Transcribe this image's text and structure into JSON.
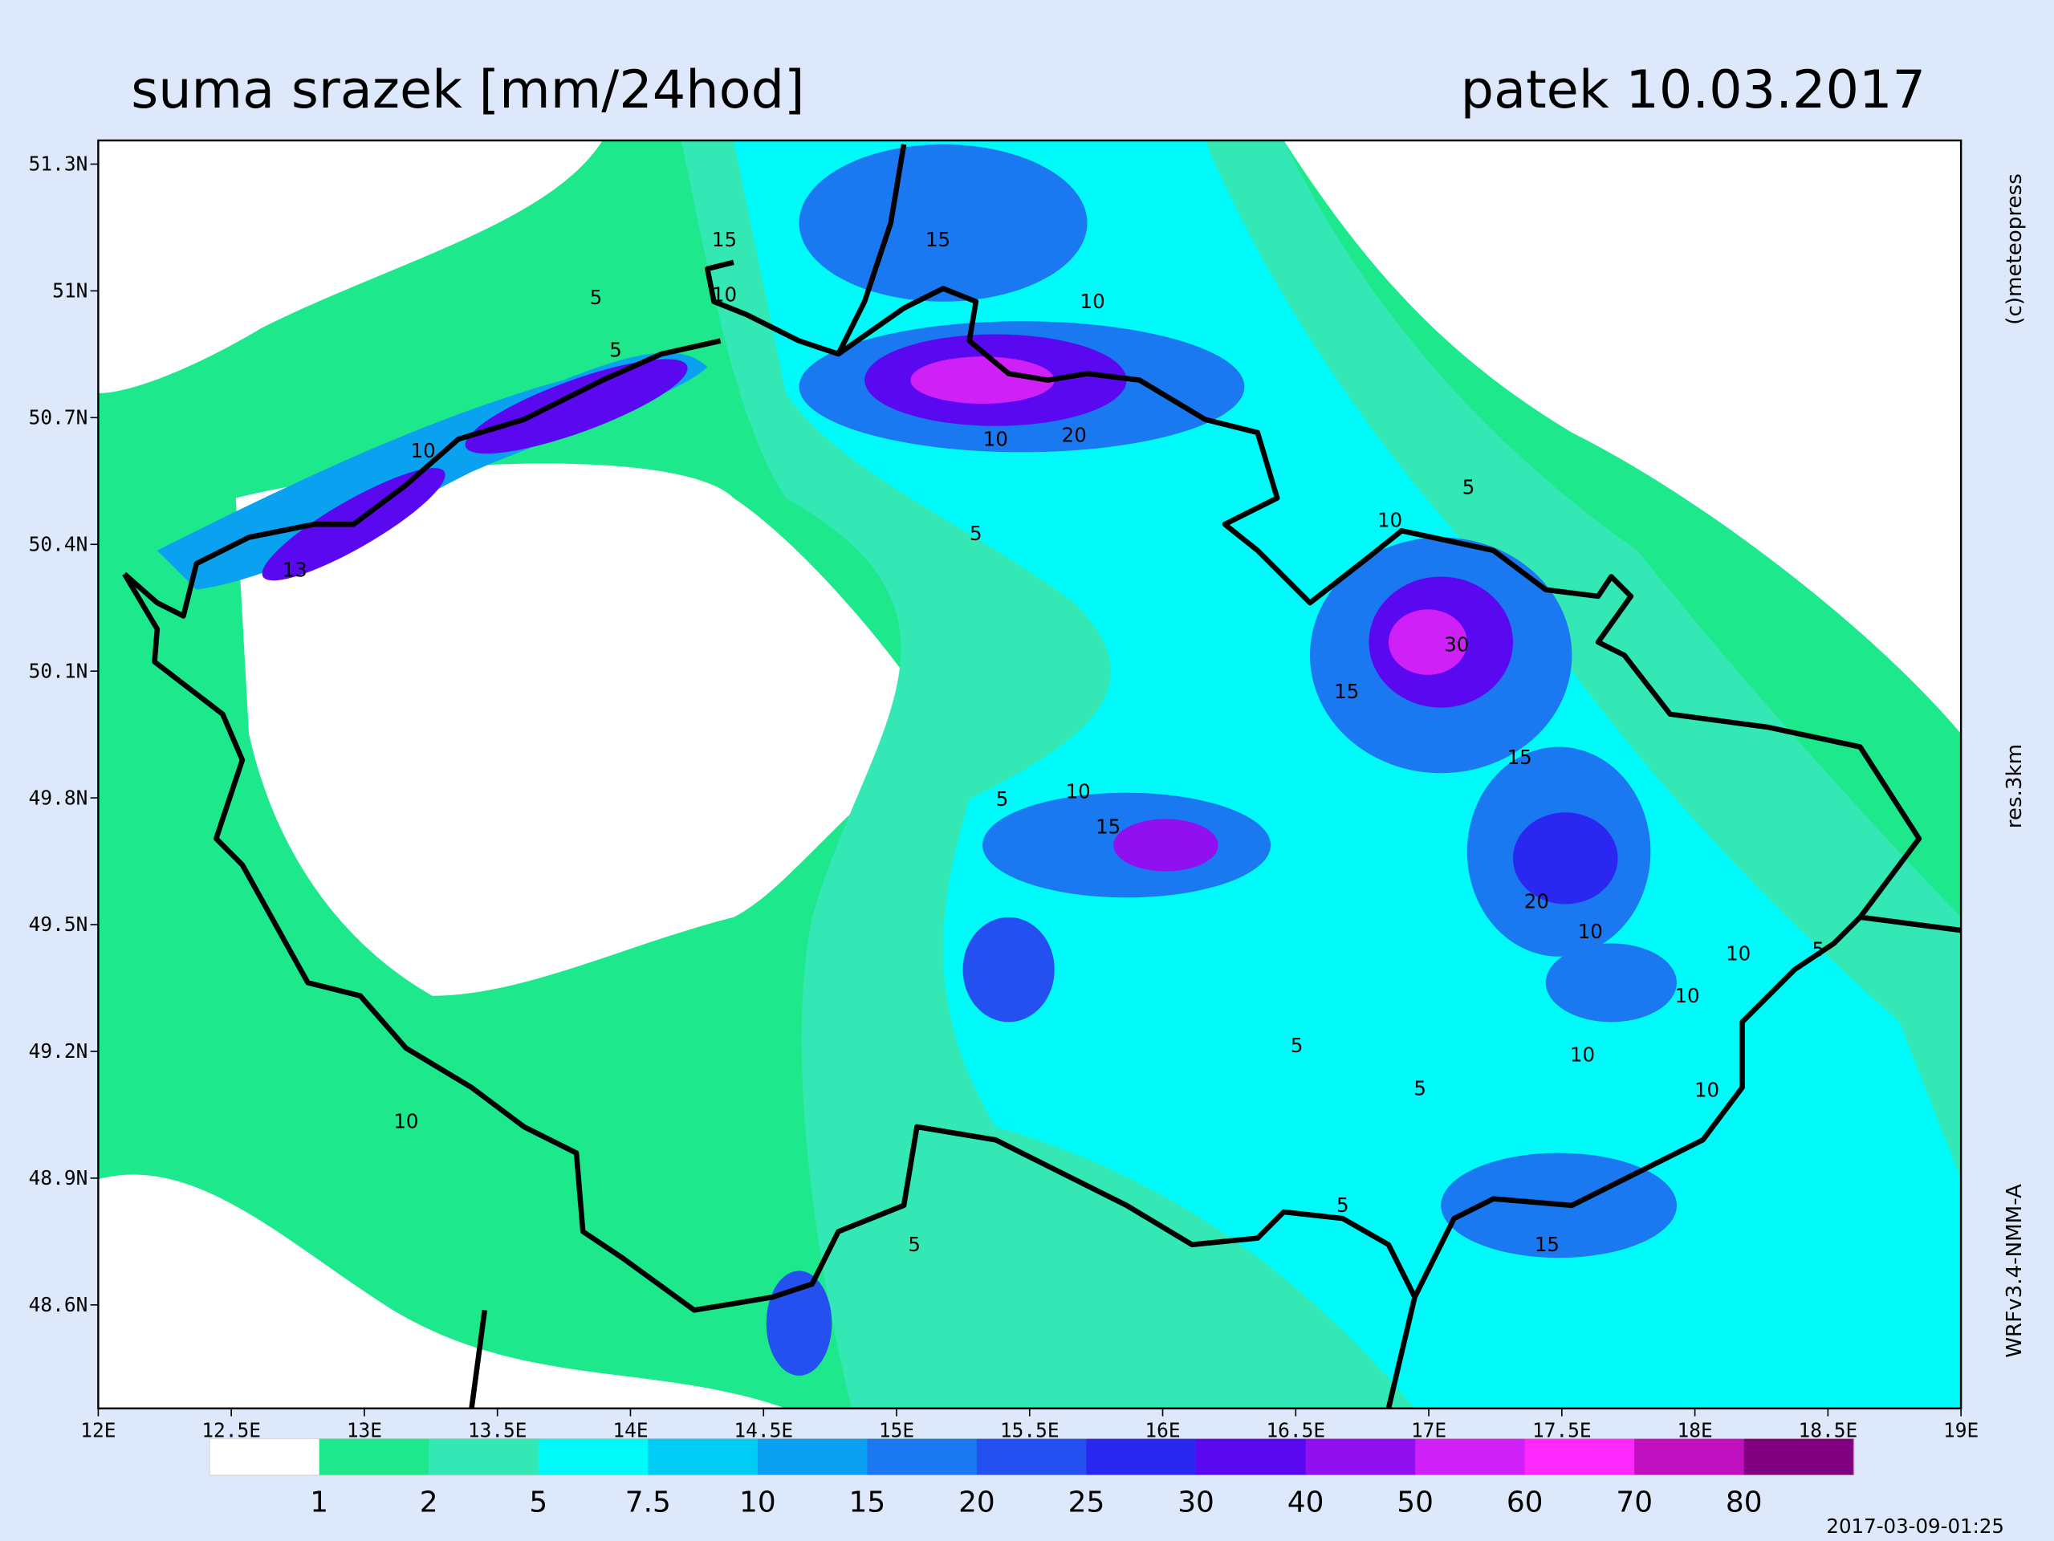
{
  "header": {
    "title": "suma srazek [mm/24hod]",
    "date": "patek 10.03.2017"
  },
  "side": {
    "copyright": "(c)meteopress",
    "resolution": "res.3km",
    "model": "WRFv3.4-NMM-A"
  },
  "map": {
    "lonlim": [
      12,
      19
    ],
    "latlim": [
      48.355,
      51.356
    ],
    "xticks": [
      {
        "value": 12,
        "label": "12E"
      },
      {
        "value": 12.5,
        "label": "12.5E"
      },
      {
        "value": 13,
        "label": "13E"
      },
      {
        "value": 13.5,
        "label": "13.5E"
      },
      {
        "value": 14,
        "label": "14E"
      },
      {
        "value": 14.5,
        "label": "14.5E"
      },
      {
        "value": 15,
        "label": "15E"
      },
      {
        "value": 15.5,
        "label": "15.5E"
      },
      {
        "value": 16,
        "label": "16E"
      },
      {
        "value": 16.5,
        "label": "16.5E"
      },
      {
        "value": 17,
        "label": "17E"
      },
      {
        "value": 17.5,
        "label": "17.5E"
      },
      {
        "value": 18,
        "label": "18E"
      },
      {
        "value": 18.5,
        "label": "18.5E"
      },
      {
        "value": 19,
        "label": "19E"
      }
    ],
    "yticks": [
      {
        "value": 48.6,
        "label": "48.6N"
      },
      {
        "value": 48.9,
        "label": "48.9N"
      },
      {
        "value": 49.2,
        "label": "49.2N"
      },
      {
        "value": 49.5,
        "label": "49.5N"
      },
      {
        "value": 49.8,
        "label": "49.8N"
      },
      {
        "value": 50.1,
        "label": "50.1N"
      },
      {
        "value": 50.4,
        "label": "50.4N"
      },
      {
        "value": 50.7,
        "label": "50.7N"
      },
      {
        "value": 51,
        "label": "51N"
      },
      {
        "value": 51.3,
        "label": "51.3N"
      }
    ],
    "contour_labels": [
      "15",
      "10",
      "5",
      "5",
      "10",
      "13",
      "15",
      "10",
      "20",
      "10",
      "5",
      "10",
      "15",
      "30",
      "5",
      "10",
      "15",
      "15",
      "20",
      "5",
      "10",
      "10",
      "5",
      "10",
      "5",
      "5",
      "10",
      "10",
      "15",
      "5",
      "5",
      "10"
    ]
  },
  "colorbar": {
    "colors": [
      "#ffffff",
      "#1ee88c",
      "#34e8b6",
      "#00fafa",
      "#00ccf5",
      "#0aa2f0",
      "#1a78f0",
      "#2450f0",
      "#2a28f0",
      "#5a08f0",
      "#9010f0",
      "#d020f8",
      "#ff28ff",
      "#c010c0",
      "#800080"
    ],
    "labels": [
      "1",
      "2",
      "5",
      "7.5",
      "10",
      "15",
      "20",
      "25",
      "30",
      "40",
      "50",
      "60",
      "70",
      "80"
    ]
  },
  "timestamp": "2017-03-09-01:25"
}
